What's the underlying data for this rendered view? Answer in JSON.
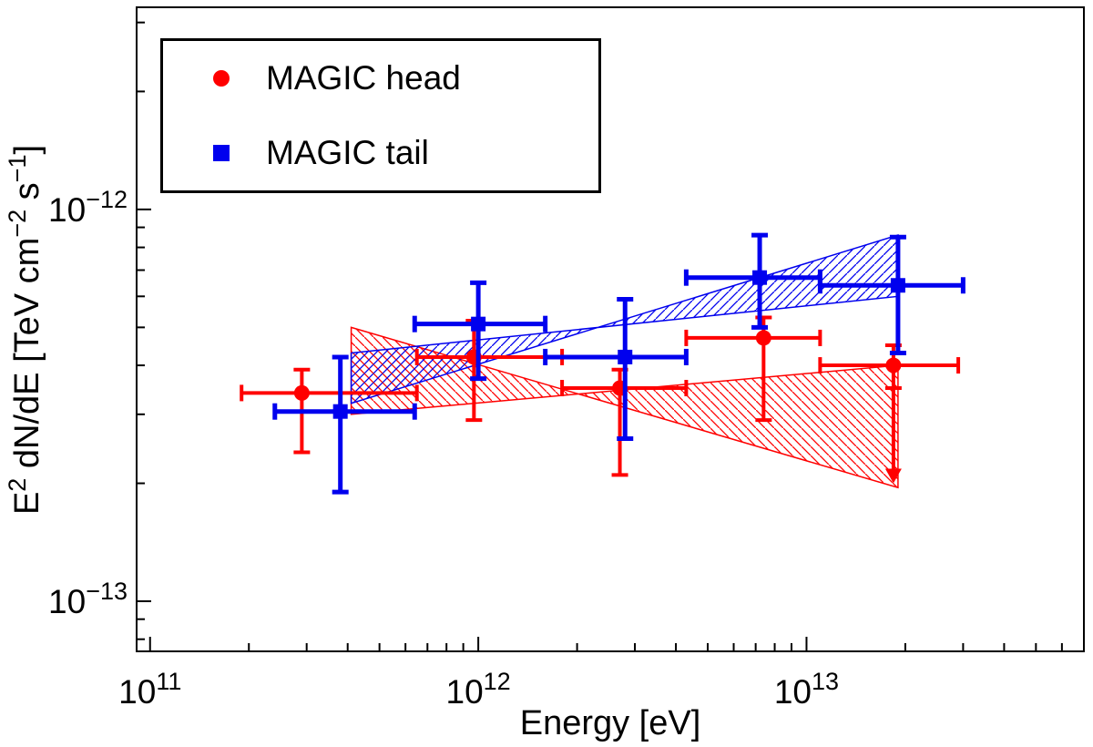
{
  "legend": {
    "entries": [
      {
        "label": "MAGIC head",
        "marker": "circle",
        "color": "#ff0000"
      },
      {
        "label": "MAGIC tail",
        "marker": "square",
        "color": "#0000ee"
      }
    ]
  },
  "chart_data": {
    "type": "scatter",
    "title": "",
    "xlabel": "Energy [eV]",
    "ylabel": "E2 dN/dE [TeV cm-2 s-1]",
    "ylabel_parts": [
      {
        "t": "E"
      },
      {
        "t": "2",
        "sup": true
      },
      {
        "t": " dN/dE [TeV cm"
      },
      {
        "t": "−2",
        "sup": true
      },
      {
        "t": " s"
      },
      {
        "t": "−1",
        "sup": true
      },
      {
        "t": "]"
      }
    ],
    "x_scale": "log",
    "y_scale": "log",
    "xlim": [
      91000000000.0,
      70000000000000.0
    ],
    "ylim": [
      7.45e-14,
      3.28e-12
    ],
    "x_ticks": [
      {
        "value": 100000000000.0,
        "exp": "11"
      },
      {
        "value": 1000000000000.0,
        "exp": "12"
      },
      {
        "value": 10000000000000.0,
        "exp": "13"
      }
    ],
    "y_ticks": [
      {
        "value": 1e-12,
        "exp": "−12"
      },
      {
        "value": 1e-13,
        "exp": "−13"
      }
    ],
    "series": [
      {
        "name": "MAGIC head",
        "color": "#ff0000",
        "marker": "circle",
        "linewidth": 4,
        "points": [
          {
            "x": 290000000000.0,
            "x_lo": 190000000000.0,
            "x_hi": 650000000000.0,
            "y": 3.4e-13,
            "y_lo": 2.4e-13,
            "y_hi": 3.9e-13
          },
          {
            "x": 970000000000.0,
            "x_lo": 650000000000.0,
            "x_hi": 1800000000000.0,
            "y": 4.2e-13,
            "y_lo": 2.9e-13,
            "y_hi": 5.2e-13
          },
          {
            "x": 2700000000000.0,
            "x_lo": 1800000000000.0,
            "x_hi": 4300000000000.0,
            "y": 3.5e-13,
            "y_lo": 2.1e-13,
            "y_hi": 3.9e-13
          },
          {
            "x": 7400000000000.0,
            "x_lo": 4300000000000.0,
            "x_hi": 11000000000000.0,
            "y": 4.7e-13,
            "y_lo": 2.9e-13,
            "y_hi": 5.3e-13
          },
          {
            "x": 18400000000000.0,
            "x_lo": 11000000000000.0,
            "x_hi": 29000000000000.0,
            "y": 4e-13,
            "y_lo": 3.5e-13,
            "y_hi": 4.5e-13
          }
        ]
      },
      {
        "name": "MAGIC tail",
        "color": "#0000ee",
        "marker": "square",
        "linewidth": 5,
        "points": [
          {
            "x": 380000000000.0,
            "x_lo": 240000000000.0,
            "x_hi": 640000000000.0,
            "y": 3.05e-13,
            "y_lo": 1.9e-13,
            "y_hi": 4.2e-13
          },
          {
            "x": 1000000000000.0,
            "x_lo": 640000000000.0,
            "x_hi": 1600000000000.0,
            "y": 5.1e-13,
            "y_lo": 3.7e-13,
            "y_hi": 6.5e-13
          },
          {
            "x": 2800000000000.0,
            "x_lo": 1600000000000.0,
            "x_hi": 4300000000000.0,
            "y": 4.2e-13,
            "y_lo": 2.6e-13,
            "y_hi": 5.9e-13
          },
          {
            "x": 7200000000000.0,
            "x_lo": 4300000000000.0,
            "x_hi": 11000000000000.0,
            "y": 6.7e-13,
            "y_lo": 5e-13,
            "y_hi": 8.6e-13
          },
          {
            "x": 19000000000000.0,
            "x_lo": 11000000000000.0,
            "x_hi": 30000000000000.0,
            "y": 6.4e-13,
            "y_lo": 4.3e-13,
            "y_hi": 8.5e-13
          }
        ]
      }
    ],
    "bands": [
      {
        "name": "head-fit",
        "color": "#ff0000",
        "hatch": "\\",
        "polygon": [
          [
            410000000000.0,
            5e-13
          ],
          [
            19000000000000.0,
            1.95e-13
          ],
          [
            19000000000000.0,
            4e-13
          ],
          [
            410000000000.0,
            3e-13
          ]
        ]
      },
      {
        "name": "tail-fit",
        "color": "#0000ee",
        "hatch": "/",
        "polygon": [
          [
            410000000000.0,
            4.3e-13
          ],
          [
            19000000000000.0,
            6e-13
          ],
          [
            19000000000000.0,
            8.6e-13
          ],
          [
            410000000000.0,
            3.2e-13
          ]
        ]
      }
    ],
    "arrows": [
      {
        "x": 18400000000000.0,
        "y_from": 3.5e-13,
        "y_to": 2e-13,
        "color": "#ff0000",
        "direction": "down"
      }
    ]
  }
}
